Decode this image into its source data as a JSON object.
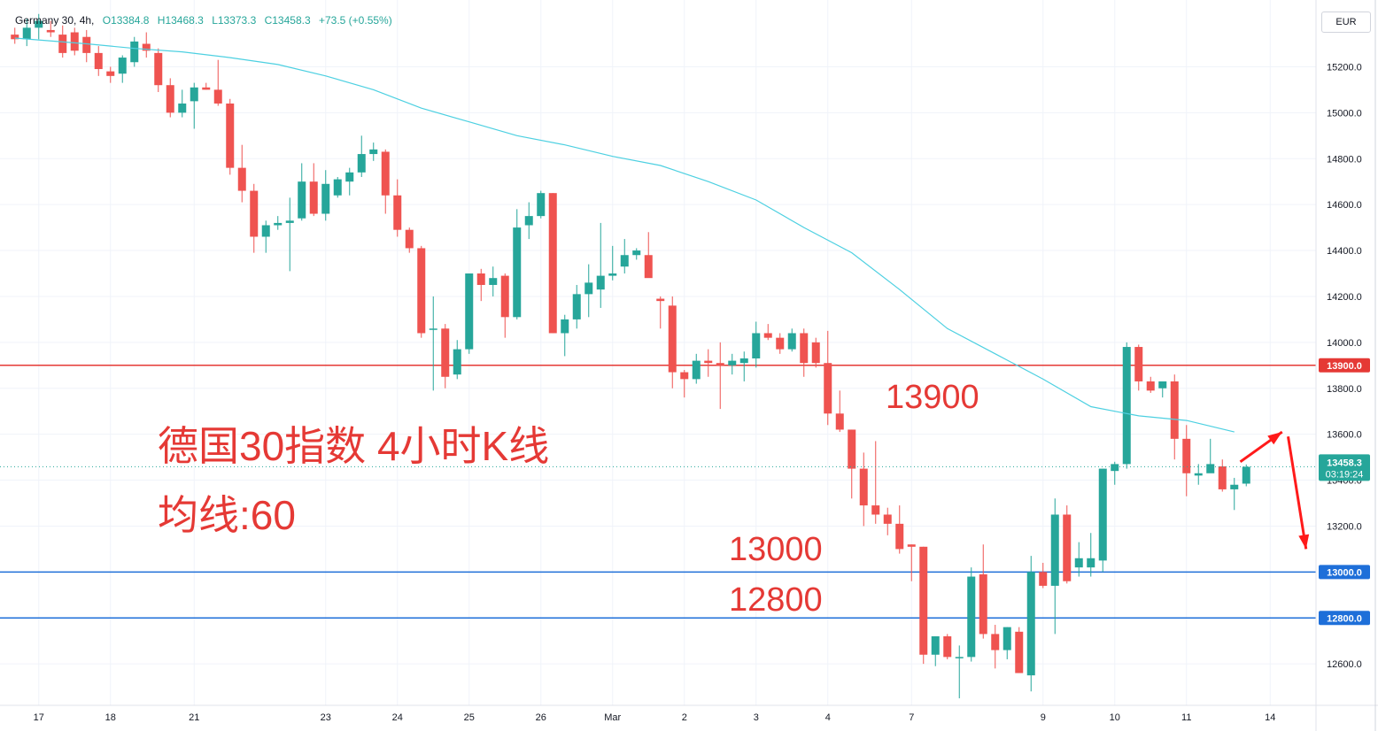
{
  "legend": {
    "symbol": "Germany 30, 4h,",
    "open": "O13384.8",
    "high": "H13468.3",
    "low": "L13373.3",
    "close": "C13458.3",
    "change": "+73.5 (+0.55%)"
  },
  "currency": "EUR",
  "annotations": {
    "title": "德国30指数 4小时K线",
    "ma": "均线:60",
    "level_13900": "13900",
    "level_13000": "13000",
    "level_12800": "12800"
  },
  "price_tag": {
    "price": "13458.3",
    "countdown": "03:19:24"
  },
  "colors": {
    "up": "#26a69a",
    "down": "#ef5350",
    "ma": "#4dd0e1",
    "resistance": "#e53935",
    "support": "#1e6fd9",
    "arrow": "#ff1a1a"
  },
  "chart_data": {
    "type": "candlestick",
    "symbol": "Germany 30",
    "timeframe": "4h",
    "y_axis": {
      "min": 12450,
      "max": 15450,
      "ticks": [
        12600,
        12800,
        13000,
        13200,
        13400,
        13600,
        13800,
        14000,
        14200,
        14400,
        14600,
        14800,
        15000,
        15200
      ]
    },
    "x_ticks": [
      {
        "label": "17",
        "bar": 2
      },
      {
        "label": "18",
        "bar": 8
      },
      {
        "label": "21",
        "bar": 15
      },
      {
        "label": "23",
        "bar": 26
      },
      {
        "label": "24",
        "bar": 32
      },
      {
        "label": "25",
        "bar": 38
      },
      {
        "label": "26",
        "bar": 44
      },
      {
        "label": "Mar",
        "bar": 50
      },
      {
        "label": "2",
        "bar": 56
      },
      {
        "label": "3",
        "bar": 62
      },
      {
        "label": "4",
        "bar": 68
      },
      {
        "label": "7",
        "bar": 75
      },
      {
        "label": "9",
        "bar": 86
      },
      {
        "label": "10",
        "bar": 92
      },
      {
        "label": "11",
        "bar": 98
      },
      {
        "label": "14",
        "bar": 105
      }
    ],
    "horizontal_lines": [
      {
        "value": 13900,
        "label": "13900.0",
        "role": "resistance"
      },
      {
        "value": 13000,
        "label": "13000.0",
        "role": "support"
      },
      {
        "value": 12800,
        "label": "12800.0",
        "role": "support"
      }
    ],
    "last_price": 13458.3,
    "ohlc": [
      [
        15340,
        15370,
        15300,
        15320
      ],
      [
        15320,
        15410,
        15290,
        15370
      ],
      [
        15370,
        15430,
        15320,
        15400
      ],
      [
        15360,
        15400,
        15330,
        15350
      ],
      [
        15340,
        15380,
        15240,
        15260
      ],
      [
        15350,
        15370,
        15250,
        15270
      ],
      [
        15330,
        15360,
        15220,
        15260
      ],
      [
        15260,
        15290,
        15160,
        15190
      ],
      [
        15180,
        15200,
        15130,
        15160
      ],
      [
        15170,
        15250,
        15130,
        15240
      ],
      [
        15220,
        15330,
        15200,
        15310
      ],
      [
        15300,
        15350,
        15240,
        15270
      ],
      [
        15260,
        15280,
        15090,
        15120
      ],
      [
        15120,
        15150,
        14980,
        15000
      ],
      [
        15000,
        15100,
        14980,
        15040
      ],
      [
        15050,
        15130,
        14930,
        15110
      ],
      [
        15110,
        15130,
        15100,
        15100
      ],
      [
        15100,
        15230,
        15030,
        15040
      ],
      [
        15040,
        15060,
        14730,
        14760
      ],
      [
        14760,
        14860,
        14610,
        14660
      ],
      [
        14660,
        14690,
        14390,
        14460
      ],
      [
        14460,
        14530,
        14390,
        14510
      ],
      [
        14510,
        14550,
        14490,
        14520
      ],
      [
        14520,
        14630,
        14310,
        14530
      ],
      [
        14540,
        14780,
        14530,
        14700
      ],
      [
        14700,
        14780,
        14550,
        14560
      ],
      [
        14560,
        14750,
        14530,
        14690
      ],
      [
        14640,
        14720,
        14630,
        14710
      ],
      [
        14700,
        14760,
        14640,
        14740
      ],
      [
        14740,
        14900,
        14720,
        14820
      ],
      [
        14820,
        14870,
        14790,
        14840
      ],
      [
        14830,
        14840,
        14560,
        14640
      ],
      [
        14640,
        14710,
        14460,
        14490
      ],
      [
        14490,
        14500,
        14390,
        14410
      ],
      [
        14410,
        14420,
        14020,
        14040
      ],
      [
        14060,
        14200,
        13790,
        14060
      ],
      [
        14060,
        14080,
        13800,
        13850
      ],
      [
        13860,
        14010,
        13840,
        13970
      ],
      [
        13970,
        14290,
        13950,
        14300
      ],
      [
        14300,
        14320,
        14180,
        14250
      ],
      [
        14250,
        14330,
        14200,
        14280
      ],
      [
        14290,
        14300,
        14020,
        14110
      ],
      [
        14110,
        14580,
        14100,
        14500
      ],
      [
        14510,
        14610,
        14450,
        14550
      ],
      [
        14550,
        14660,
        14540,
        14650
      ],
      [
        14650,
        14650,
        14040,
        14040
      ],
      [
        14040,
        14120,
        13940,
        14100
      ],
      [
        14100,
        14250,
        14060,
        14210
      ],
      [
        14210,
        14340,
        14110,
        14260
      ],
      [
        14230,
        14520,
        14150,
        14290
      ],
      [
        14290,
        14420,
        14270,
        14300
      ],
      [
        14330,
        14450,
        14300,
        14380
      ],
      [
        14380,
        14410,
        14360,
        14400
      ],
      [
        14380,
        14480,
        14310,
        14280
      ],
      [
        14190,
        14200,
        14060,
        14180
      ],
      [
        14160,
        14200,
        13800,
        13870
      ],
      [
        13870,
        13880,
        13760,
        13840
      ],
      [
        13840,
        13950,
        13820,
        13920
      ],
      [
        13920,
        13970,
        13850,
        13910
      ],
      [
        13910,
        14000,
        13710,
        13900
      ],
      [
        13900,
        13950,
        13860,
        13920
      ],
      [
        13910,
        13960,
        13830,
        13930
      ],
      [
        13930,
        14090,
        13890,
        14040
      ],
      [
        14040,
        14080,
        14010,
        14020
      ],
      [
        14020,
        14040,
        13950,
        13970
      ],
      [
        13970,
        14060,
        13960,
        14040
      ],
      [
        14040,
        14060,
        13850,
        13910
      ],
      [
        14000,
        14020,
        13890,
        13910
      ],
      [
        13910,
        14050,
        13640,
        13690
      ],
      [
        13690,
        13790,
        13610,
        13620
      ],
      [
        13620,
        13620,
        13320,
        13450
      ],
      [
        13450,
        13520,
        13200,
        13290
      ],
      [
        13290,
        13570,
        13210,
        13250
      ],
      [
        13250,
        13280,
        13160,
        13210
      ],
      [
        13210,
        13290,
        13080,
        13100
      ],
      [
        13120,
        13120,
        12960,
        13110
      ],
      [
        13110,
        13110,
        12600,
        12640
      ],
      [
        12640,
        12720,
        12590,
        12720
      ],
      [
        12720,
        12730,
        12620,
        12630
      ],
      [
        12630,
        12680,
        12450,
        12630
      ],
      [
        12630,
        13020,
        12610,
        12980
      ],
      [
        12990,
        13120,
        12710,
        12730
      ],
      [
        12730,
        12770,
        12580,
        12660
      ],
      [
        12660,
        12760,
        12620,
        12760
      ],
      [
        12740,
        12760,
        12560,
        12560
      ],
      [
        12550,
        13070,
        12480,
        13000
      ],
      [
        13000,
        13040,
        12930,
        12940
      ],
      [
        12940,
        13320,
        12730,
        13250
      ],
      [
        13250,
        13290,
        12950,
        12960
      ],
      [
        13020,
        13130,
        12980,
        13060
      ],
      [
        13020,
        13170,
        12980,
        13060
      ],
      [
        13050,
        13450,
        13000,
        13450
      ],
      [
        13440,
        13480,
        13380,
        13470
      ],
      [
        13470,
        14000,
        13450,
        13980
      ],
      [
        13980,
        13990,
        13790,
        13830
      ],
      [
        13830,
        13850,
        13780,
        13790
      ],
      [
        13800,
        13810,
        13760,
        13830
      ],
      [
        13830,
        13860,
        13490,
        13580
      ],
      [
        13580,
        13640,
        13330,
        13430
      ],
      [
        13420,
        13470,
        13380,
        13430
      ],
      [
        13430,
        13580,
        13440,
        13470
      ],
      [
        13460,
        13490,
        13350,
        13360
      ],
      [
        13360,
        13410,
        13270,
        13380
      ],
      [
        13384.8,
        13468.3,
        13373.3,
        13458.3
      ]
    ],
    "ma": {
      "period": 60,
      "label": "均线:60",
      "points": [
        [
          0,
          15325
        ],
        [
          6,
          15300
        ],
        [
          10,
          15280
        ],
        [
          14,
          15265
        ],
        [
          18,
          15240
        ],
        [
          22,
          15210
        ],
        [
          26,
          15160
        ],
        [
          30,
          15100
        ],
        [
          34,
          15020
        ],
        [
          38,
          14960
        ],
        [
          42,
          14900
        ],
        [
          46,
          14860
        ],
        [
          50,
          14810
        ],
        [
          54,
          14770
        ],
        [
          58,
          14700
        ],
        [
          62,
          14620
        ],
        [
          66,
          14500
        ],
        [
          70,
          14390
        ],
        [
          74,
          14230
        ],
        [
          78,
          14060
        ],
        [
          82,
          13950
        ],
        [
          86,
          13840
        ],
        [
          90,
          13720
        ],
        [
          94,
          13680
        ],
        [
          98,
          13660
        ],
        [
          102,
          13610
        ]
      ]
    },
    "forecast_arrows": [
      {
        "from": [
          102.5,
          13480
        ],
        "to": [
          106,
          13610
        ]
      },
      {
        "from": [
          106.5,
          13590
        ],
        "to": [
          108,
          13100
        ]
      }
    ]
  }
}
